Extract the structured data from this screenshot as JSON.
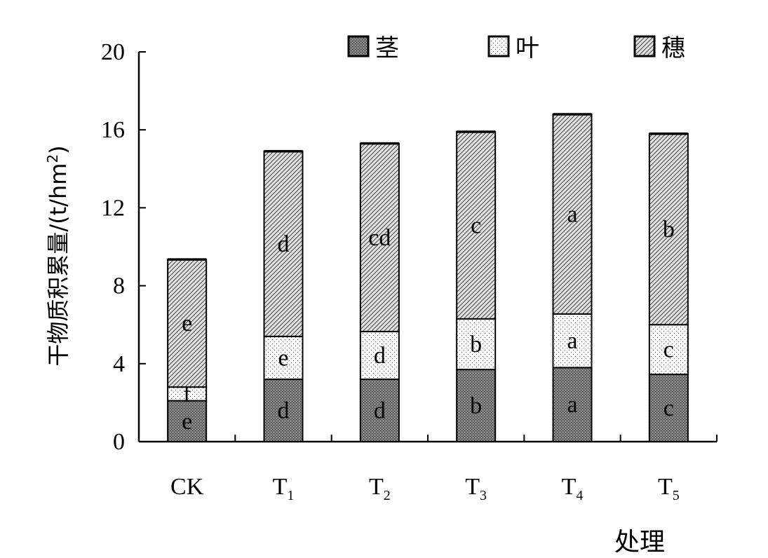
{
  "chart_data": {
    "type": "bar",
    "stacked": true,
    "xlabel": "处理",
    "ylabel": "干物质积累量/(t/hm",
    "ylabel_sup": "2",
    "ylabel_close": ")",
    "ylim": [
      0,
      20
    ],
    "yticks": [
      "0",
      "4",
      "8",
      "12",
      "16",
      "20"
    ],
    "categories": [
      {
        "main": "CK",
        "sub": ""
      },
      {
        "main": "T",
        "sub": "1"
      },
      {
        "main": "T",
        "sub": "2"
      },
      {
        "main": "T",
        "sub": "3"
      },
      {
        "main": "T",
        "sub": "4"
      },
      {
        "main": "T",
        "sub": "5"
      }
    ],
    "legend_position": "top-right",
    "series": [
      {
        "name": "茎",
        "values": [
          2.1,
          3.2,
          3.2,
          3.7,
          3.8,
          3.45
        ],
        "labels": [
          "e",
          "d",
          "d",
          "b",
          "a",
          "c"
        ],
        "color": "#777777"
      },
      {
        "name": "叶",
        "values": [
          0.7,
          2.2,
          2.45,
          2.6,
          2.75,
          2.55
        ],
        "labels": [
          "f",
          "e",
          "d",
          "b",
          "a",
          "c"
        ],
        "color": "#ffffff"
      },
      {
        "name": "穗",
        "values": [
          6.55,
          9.5,
          9.65,
          9.6,
          10.25,
          9.8
        ],
        "labels": [
          "e",
          "d",
          "cd",
          "c",
          "a",
          "b"
        ],
        "color": "#bdbdbd"
      }
    ]
  }
}
